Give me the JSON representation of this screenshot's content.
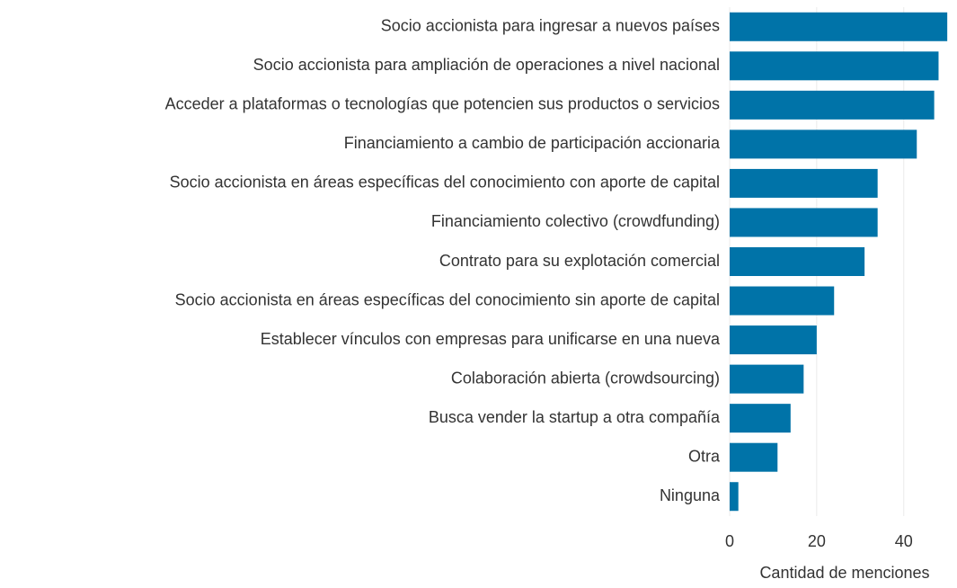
{
  "chart_data": {
    "type": "barh",
    "categories": [
      "Socio accionista para ingresar a nuevos países",
      "Socio accionista para ampliación de operaciones a nivel nacional",
      "Acceder a plataformas o tecnologías que potencien sus productos o servicios",
      "Financiamiento a cambio de participación accionaria",
      "Socio accionista en áreas específicas del conocimiento con aporte de capital",
      "Financiamiento colectivo (crowdfunding)",
      "Contrato para su explotación comercial",
      "Socio accionista en áreas específicas del conocimiento sin aporte de capital",
      "Establecer vínculos con empresas para unificarse en una nueva",
      "Colaboración abierta (crowdsourcing)",
      "Busca vender la startup a otra compañía",
      "Otra",
      "Ninguna"
    ],
    "values": [
      50,
      48,
      47,
      43,
      34,
      34,
      31,
      24,
      20,
      17,
      14,
      11,
      2
    ],
    "color": "#0073a8",
    "xlabel": "Cantidad de menciones",
    "xlim": [
      0,
      51
    ],
    "xticks": [
      0,
      20,
      40
    ],
    "grid": true
  }
}
